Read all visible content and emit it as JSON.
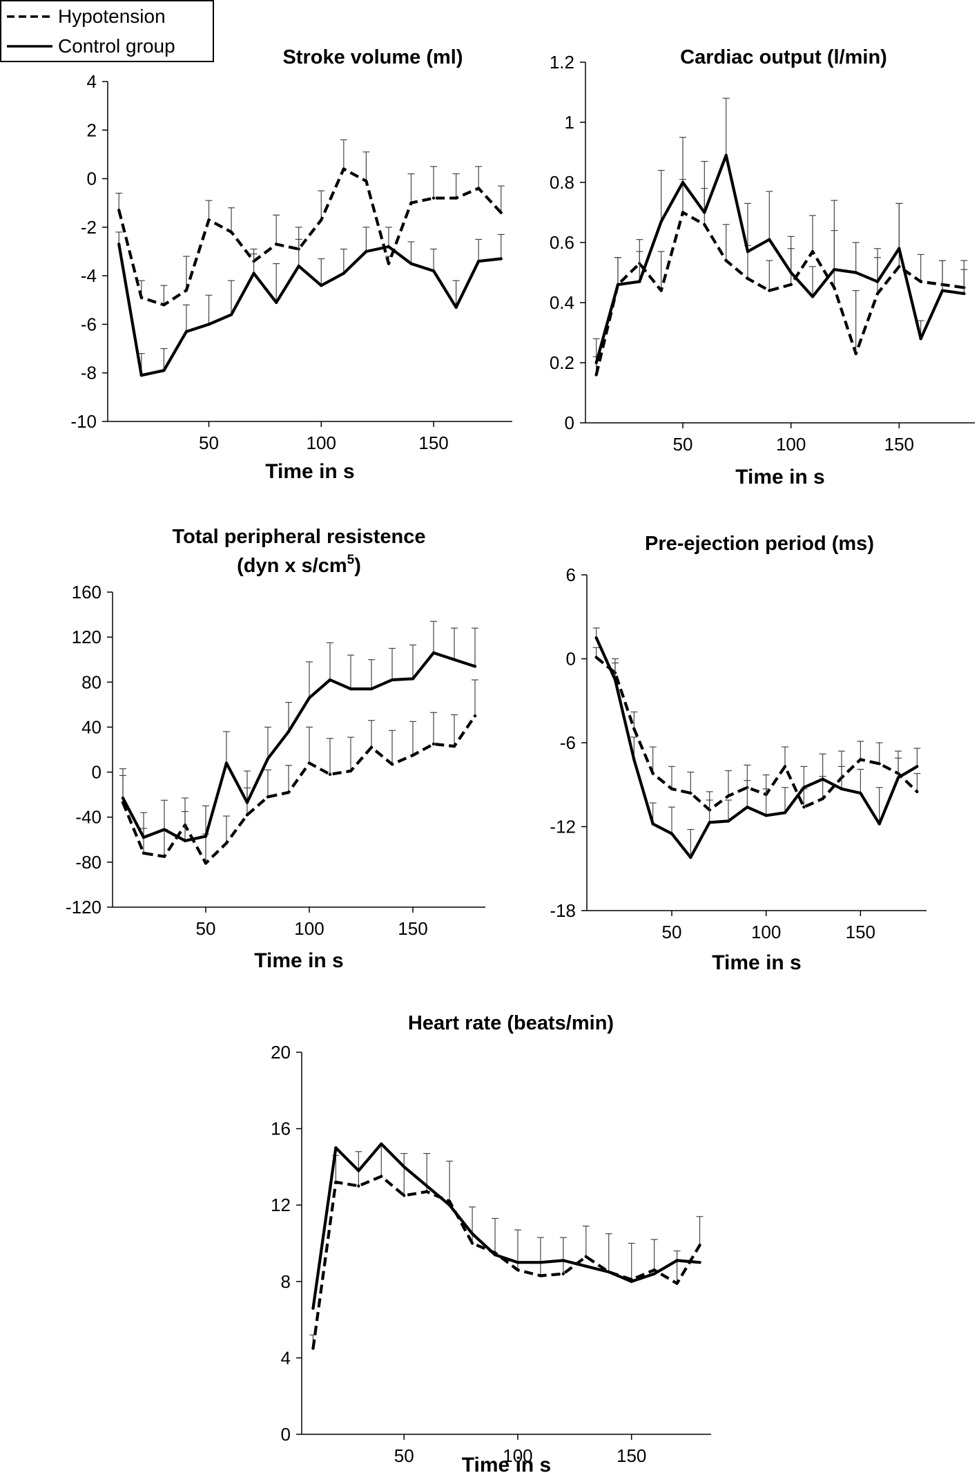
{
  "legend": [
    {
      "label": "Hypotension",
      "style": "dashed"
    },
    {
      "label": "Control group",
      "style": "solid"
    }
  ],
  "chart_data": [
    {
      "type": "line",
      "title": "Stroke volume (ml)",
      "xlabel": "Time in s",
      "ylabel": "",
      "xlim": [
        5,
        185
      ],
      "ylim": [
        -10,
        4
      ],
      "xticks": [
        50,
        100,
        150
      ],
      "yticks": [
        -10,
        -8,
        -6,
        -4,
        -2,
        0,
        2,
        4
      ],
      "x": [
        10,
        20,
        30,
        40,
        50,
        60,
        70,
        80,
        90,
        100,
        110,
        120,
        130,
        140,
        150,
        160,
        170,
        180
      ],
      "series": [
        {
          "name": "Hypotension",
          "style": "dashed",
          "values": [
            -1.3,
            -4.9,
            -5.2,
            -4.6,
            -1.7,
            -2.2,
            -3.4,
            -2.7,
            -2.9,
            -1.7,
            0.4,
            -0.1,
            -3.5,
            -1.0,
            -0.8,
            -0.8,
            -0.4,
            -1.4
          ],
          "errors": [
            0.7,
            0.7,
            0.8,
            1.4,
            0.8,
            1.0,
            0.3,
            1.2,
            0.9,
            1.2,
            1.2,
            1.2,
            0.3,
            1.2,
            1.3,
            1.0,
            0.9,
            1.1
          ]
        },
        {
          "name": "Control group",
          "style": "solid",
          "values": [
            -2.7,
            -8.1,
            -7.9,
            -6.3,
            -6.0,
            -5.6,
            -3.9,
            -5.1,
            -3.6,
            -4.4,
            -3.9,
            -3.0,
            -2.8,
            -3.5,
            -3.8,
            -5.3,
            -3.4,
            -3.3
          ],
          "errors": [
            0.5,
            0.9,
            0.9,
            1.1,
            1.2,
            1.4,
            1.0,
            1.6,
            1.1,
            1.1,
            1.0,
            1.0,
            0.8,
            0.9,
            0.9,
            1.1,
            0.9,
            1.0
          ]
        }
      ]
    },
    {
      "type": "line",
      "title": "Cardiac output (l/min)",
      "xlabel": "Time in s",
      "ylabel": "",
      "xlim": [
        5,
        185
      ],
      "ylim": [
        0,
        1.2
      ],
      "xticks": [
        50,
        100,
        150
      ],
      "yticks": [
        0,
        0.2,
        0.4,
        0.6,
        0.8,
        1,
        1.2
      ],
      "x": [
        10,
        20,
        30,
        40,
        50,
        60,
        70,
        80,
        90,
        100,
        110,
        120,
        130,
        140,
        150,
        160,
        170,
        180
      ],
      "series": [
        {
          "name": "Hypotension",
          "style": "dashed",
          "values": [
            0.16,
            0.46,
            0.53,
            0.44,
            0.7,
            0.66,
            0.54,
            0.48,
            0.44,
            0.46,
            0.57,
            0.45,
            0.23,
            0.43,
            0.52,
            0.47,
            0.46,
            0.45
          ],
          "errors": [
            0.06,
            0.09,
            0.08,
            0.13,
            0.11,
            0.12,
            0.12,
            0.11,
            0.1,
            0.12,
            0.12,
            0.29,
            0.21,
            0.12,
            0.21,
            0.09,
            0.08,
            0.09
          ]
        },
        {
          "name": "Control group",
          "style": "solid",
          "values": [
            0.2,
            0.46,
            0.47,
            0.67,
            0.8,
            0.7,
            0.89,
            0.57,
            0.61,
            0.5,
            0.42,
            0.51,
            0.5,
            0.47,
            0.58,
            0.28,
            0.44,
            0.43
          ],
          "errors": [
            0.08,
            0.09,
            0.1,
            0.17,
            0.15,
            0.17,
            0.19,
            0.16,
            0.16,
            0.12,
            0.1,
            0.13,
            0.1,
            0.11,
            0.15,
            0.06,
            0.1,
            0.08
          ]
        }
      ]
    },
    {
      "type": "line",
      "title": "Total peripheral resistence",
      "subtitle": "(dyn x s/cm",
      "subtitle_sup": "5",
      "subtitle_end": ")",
      "xlabel": "Time in s",
      "ylabel": "",
      "xlim": [
        5,
        185
      ],
      "ylim": [
        -120,
        160
      ],
      "xticks": [
        50,
        100,
        150
      ],
      "yticks": [
        -120,
        -80,
        -40,
        0,
        40,
        80,
        120,
        160
      ],
      "x": [
        10,
        20,
        30,
        40,
        50,
        60,
        70,
        80,
        90,
        100,
        110,
        120,
        130,
        140,
        150,
        160,
        170,
        180
      ],
      "series": [
        {
          "name": "Hypotension",
          "style": "dashed",
          "values": [
            -27,
            -72,
            -75,
            -47,
            -81,
            -63,
            -38,
            -22,
            -18,
            8,
            -2,
            1,
            22,
            7,
            15,
            25,
            23,
            50
          ],
          "errors": [
            24,
            22,
            24,
            24,
            26,
            24,
            24,
            24,
            24,
            32,
            32,
            30,
            24,
            30,
            30,
            28,
            28,
            32
          ]
        },
        {
          "name": "Control group",
          "style": "solid",
          "values": [
            -23,
            -58,
            -51,
            -61,
            -57,
            8,
            -27,
            12,
            36,
            66,
            82,
            74,
            74,
            82,
            83,
            106,
            100,
            94
          ],
          "errors": [
            26,
            22,
            26,
            26,
            27,
            28,
            28,
            28,
            26,
            32,
            33,
            30,
            26,
            28,
            30,
            28,
            28,
            34
          ]
        }
      ]
    },
    {
      "type": "line",
      "title": "Pre-ejection period (ms)",
      "xlabel": "Time in s",
      "ylabel": "",
      "xlim": [
        5,
        185
      ],
      "ylim": [
        -18,
        6
      ],
      "xticks": [
        50,
        100,
        150
      ],
      "yticks": [
        -18,
        -12,
        -6,
        0,
        6
      ],
      "x": [
        10,
        20,
        30,
        40,
        50,
        60,
        70,
        80,
        90,
        100,
        110,
        120,
        130,
        140,
        150,
        160,
        170,
        180
      ],
      "series": [
        {
          "name": "Hypotension",
          "style": "dashed",
          "values": [
            0.1,
            -1.0,
            -5.0,
            -8.2,
            -9.3,
            -9.6,
            -10.8,
            -9.8,
            -9.2,
            -9.7,
            -7.7,
            -10.6,
            -10.0,
            -8.5,
            -7.2,
            -7.5,
            -8.2,
            -9.5
          ],
          "errors": [
            0.7,
            1.0,
            1.2,
            1.9,
            1.6,
            1.5,
            1.3,
            1.8,
            1.6,
            1.4,
            1.4,
            1.3,
            1.6,
            1.9,
            1.3,
            1.5,
            1.6,
            1.3
          ]
        },
        {
          "name": "Control group",
          "style": "solid",
          "values": [
            1.5,
            -1.5,
            -7.2,
            -11.8,
            -12.5,
            -14.2,
            -11.7,
            -11.6,
            -10.6,
            -11.2,
            -11.0,
            -9.2,
            -8.6,
            -9.3,
            -9.6,
            -11.8,
            -8.5,
            -7.7
          ],
          "errors": [
            0.7,
            1.2,
            1.6,
            1.5,
            1.9,
            2.0,
            1.6,
            1.5,
            1.9,
            1.9,
            1.8,
            1.5,
            1.8,
            1.6,
            1.7,
            2.6,
            1.4,
            1.3
          ]
        }
      ]
    },
    {
      "type": "line",
      "title": "Heart rate (beats/min)",
      "xlabel": "Time in s",
      "ylabel": "",
      "xlim": [
        5,
        185
      ],
      "ylim": [
        0,
        20
      ],
      "xticks": [
        50,
        100,
        150
      ],
      "yticks": [
        0,
        4,
        8,
        12,
        16,
        20
      ],
      "x": [
        10,
        20,
        30,
        40,
        50,
        60,
        70,
        80,
        90,
        100,
        110,
        120,
        130,
        140,
        150,
        160,
        170,
        180
      ],
      "series": [
        {
          "name": "Hypotension",
          "style": "dashed",
          "values": [
            4.5,
            13.2,
            13.0,
            13.5,
            12.5,
            12.7,
            12.2,
            10.0,
            9.5,
            8.6,
            8.3,
            8.4,
            9.3,
            8.5,
            8.1,
            8.6,
            7.9,
            9.9
          ],
          "errors": [
            0.7,
            1.4,
            1.8,
            1.6,
            2.2,
            2.0,
            2.1,
            1.9,
            1.8,
            2.1,
            2.0,
            1.9,
            1.6,
            2.0,
            1.9,
            1.6,
            1.7,
            1.5
          ]
        },
        {
          "name": "Control group",
          "style": "solid",
          "values": [
            6.6,
            15.0,
            13.8,
            15.2,
            14.0,
            13.0,
            12.0,
            10.5,
            9.4,
            9.0,
            9.0,
            9.1,
            8.8,
            8.5,
            8.0,
            8.4,
            9.1,
            9.0
          ]
        }
      ]
    }
  ]
}
